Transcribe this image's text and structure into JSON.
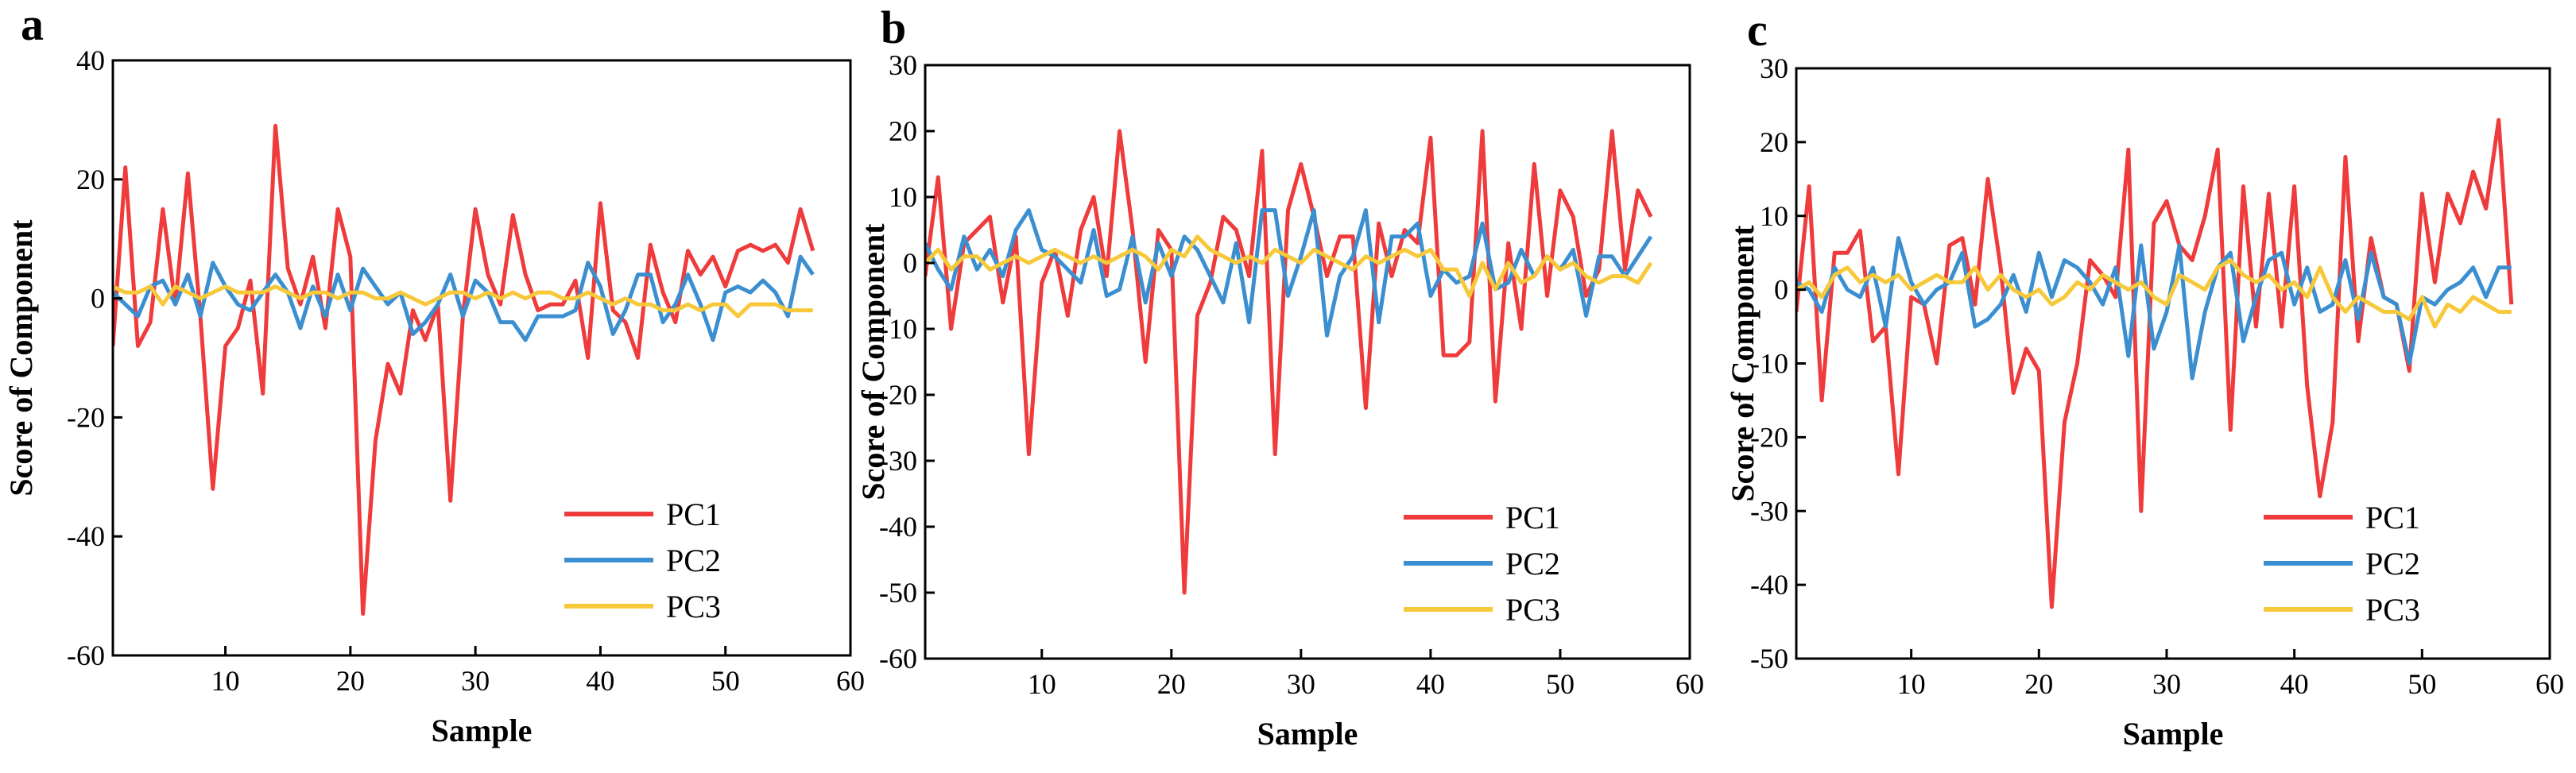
{
  "figure": {
    "series_colors": {
      "PC1": "#ef3b3b",
      "PC2": "#3b8fd1",
      "PC3": "#f7c83a"
    }
  },
  "chart_data": [
    {
      "type": "line",
      "panel_label": "a",
      "xlabel": "Sample",
      "ylabel": "Score of Component",
      "xlim": [
        1,
        60
      ],
      "ylim": [
        -60,
        40
      ],
      "xticks": [
        10,
        20,
        30,
        40,
        50,
        60
      ],
      "yticks": [
        -60,
        -40,
        -20,
        0,
        20,
        40
      ],
      "legend": [
        "PC1",
        "PC2",
        "PC3"
      ],
      "legend_position": "bottom-right",
      "x": [
        1,
        2,
        3,
        4,
        5,
        6,
        7,
        8,
        9,
        10,
        11,
        12,
        13,
        14,
        15,
        16,
        17,
        18,
        19,
        20,
        21,
        22,
        23,
        24,
        25,
        26,
        27,
        28,
        29,
        30,
        31,
        32,
        33,
        34,
        35,
        36,
        37,
        38,
        39,
        40,
        41,
        42,
        43,
        44,
        45,
        46,
        47,
        48,
        49,
        50,
        51,
        52,
        53,
        54,
        55,
        56,
        57
      ],
      "series": [
        {
          "name": "PC1",
          "values": [
            -8,
            22,
            -8,
            -4,
            15,
            -1,
            21,
            -3,
            -32,
            -8,
            -5,
            3,
            -16,
            29,
            5,
            -1,
            7,
            -5,
            15,
            7,
            -53,
            -24,
            -11,
            -16,
            -2,
            -7,
            -1,
            -34,
            -3,
            15,
            4,
            -1,
            14,
            4,
            -2,
            -1,
            -1,
            3,
            -10,
            16,
            -2,
            -4,
            -10,
            9,
            1,
            -4,
            8,
            4,
            7,
            2,
            8,
            9,
            8,
            9,
            6,
            15,
            8
          ]
        },
        {
          "name": "PC2",
          "values": [
            1,
            -1,
            -3,
            2,
            3,
            -1,
            4,
            -3,
            6,
            2,
            -1,
            -2,
            1,
            4,
            1,
            -5,
            2,
            -3,
            4,
            -2,
            5,
            2,
            -1,
            1,
            -6,
            -4,
            -1,
            4,
            -3,
            3,
            1,
            -4,
            -4,
            -7,
            -3,
            -3,
            -3,
            -2,
            6,
            2,
            -6,
            -2,
            4,
            4,
            -4,
            -1,
            4,
            -1,
            -7,
            1,
            2,
            1,
            3,
            1,
            -3,
            7,
            4
          ]
        },
        {
          "name": "PC3",
          "values": [
            2,
            1,
            1,
            2,
            -1,
            2,
            1,
            0,
            1,
            2,
            1,
            1,
            1,
            2,
            1,
            0,
            1,
            1,
            0,
            1,
            1,
            0,
            0,
            1,
            0,
            -1,
            0,
            1,
            1,
            0,
            1,
            0,
            1,
            0,
            1,
            1,
            0,
            0,
            1,
            0,
            -1,
            0,
            -1,
            -1,
            -2,
            -2,
            -1,
            -2,
            -1,
            -1,
            -3,
            -1,
            -1,
            -1,
            -2,
            -2,
            -2
          ]
        }
      ]
    },
    {
      "type": "line",
      "panel_label": "b",
      "xlabel": "Sample",
      "ylabel": "Score of Component",
      "xlim": [
        1,
        60
      ],
      "ylim": [
        -60,
        30
      ],
      "xticks": [
        10,
        20,
        30,
        40,
        50,
        60
      ],
      "yticks": [
        -60,
        -50,
        -40,
        -30,
        -20,
        -10,
        0,
        10,
        20,
        30
      ],
      "legend": [
        "PC1",
        "PC2",
        "PC3"
      ],
      "legend_position": "bottom-right",
      "x": [
        1,
        2,
        3,
        4,
        5,
        6,
        7,
        8,
        9,
        10,
        11,
        12,
        13,
        14,
        15,
        16,
        17,
        18,
        19,
        20,
        21,
        22,
        23,
        24,
        25,
        26,
        27,
        28,
        29,
        30,
        31,
        32,
        33,
        34,
        35,
        36,
        37,
        38,
        39,
        40,
        41,
        42,
        43,
        44,
        45,
        46,
        47,
        48,
        49,
        50,
        51,
        52,
        53,
        54,
        55,
        56,
        57
      ],
      "series": [
        {
          "name": "PC1",
          "values": [
            -2,
            13,
            -10,
            3,
            5,
            7,
            -6,
            4,
            -29,
            -3,
            2,
            -8,
            5,
            10,
            -2,
            20,
            5,
            -15,
            5,
            2,
            -50,
            -8,
            -3,
            7,
            5,
            -2,
            17,
            -29,
            8,
            15,
            7,
            -2,
            4,
            4,
            -22,
            6,
            -2,
            5,
            3,
            19,
            -14,
            -14,
            -12,
            20,
            -21,
            3,
            -10,
            15,
            -5,
            11,
            7,
            -5,
            -1,
            20,
            -1,
            11,
            7
          ]
        },
        {
          "name": "PC2",
          "values": [
            3,
            -1,
            -4,
            4,
            -1,
            2,
            -2,
            5,
            8,
            2,
            1,
            -1,
            -3,
            5,
            -5,
            -4,
            4,
            -6,
            3,
            -2,
            4,
            2,
            -2,
            -6,
            3,
            -9,
            8,
            8,
            -5,
            1,
            8,
            -11,
            -2,
            1,
            8,
            -9,
            4,
            4,
            6,
            -5,
            -1,
            -3,
            -2,
            6,
            -4,
            -3,
            2,
            -2,
            1,
            -1,
            2,
            -8,
            1,
            1,
            -2,
            1,
            4
          ]
        },
        {
          "name": "PC3",
          "values": [
            0,
            2,
            -1,
            1,
            1,
            -1,
            0,
            1,
            0,
            1,
            2,
            1,
            0,
            1,
            0,
            1,
            2,
            1,
            -1,
            2,
            1,
            4,
            2,
            1,
            0,
            1,
            0,
            2,
            1,
            0,
            2,
            1,
            0,
            -1,
            1,
            0,
            1,
            2,
            1,
            2,
            -1,
            -1,
            -5,
            0,
            -4,
            0,
            -3,
            -2,
            1,
            -1,
            0,
            -2,
            -3,
            -2,
            -2,
            -3,
            0
          ]
        }
      ]
    },
    {
      "type": "line",
      "panel_label": "c",
      "xlabel": "Sample",
      "ylabel": "Score of Component",
      "xlim": [
        1,
        60
      ],
      "ylim": [
        -50,
        30
      ],
      "xticks": [
        10,
        20,
        30,
        40,
        50,
        60
      ],
      "yticks": [
        -50,
        -40,
        -30,
        -20,
        -10,
        0,
        10,
        20,
        30
      ],
      "legend": [
        "PC1",
        "PC2",
        "PC3"
      ],
      "legend_position": "bottom-right",
      "x": [
        1,
        2,
        3,
        4,
        5,
        6,
        7,
        8,
        9,
        10,
        11,
        12,
        13,
        14,
        15,
        16,
        17,
        18,
        19,
        20,
        21,
        22,
        23,
        24,
        25,
        26,
        27,
        28,
        29,
        30,
        31,
        32,
        33,
        34,
        35,
        36,
        37,
        38,
        39,
        40,
        41,
        42,
        43,
        44,
        45,
        46,
        47,
        48,
        49,
        50,
        51,
        52,
        53,
        54,
        55,
        56,
        57
      ],
      "series": [
        {
          "name": "PC1",
          "values": [
            -3,
            14,
            -15,
            5,
            5,
            8,
            -7,
            -5,
            -25,
            -1,
            -2,
            -10,
            6,
            7,
            -2,
            15,
            3,
            -14,
            -8,
            -11,
            -43,
            -18,
            -10,
            4,
            2,
            -1,
            19,
            -30,
            9,
            12,
            6,
            4,
            10,
            19,
            -19,
            14,
            -5,
            13,
            -5,
            14,
            -13,
            -28,
            -18,
            18,
            -7,
            7,
            -1,
            -2,
            -11,
            13,
            1,
            13,
            9,
            16,
            11,
            23,
            -2
          ]
        },
        {
          "name": "PC2",
          "values": [
            1,
            0,
            -3,
            3,
            0,
            -1,
            3,
            -5,
            7,
            1,
            -2,
            0,
            1,
            5,
            -5,
            -4,
            -2,
            2,
            -3,
            5,
            -1,
            4,
            3,
            1,
            -2,
            3,
            -9,
            6,
            -8,
            -3,
            6,
            -12,
            -3,
            3,
            5,
            -7,
            -1,
            4,
            5,
            -2,
            3,
            -3,
            -2,
            4,
            -4,
            5,
            -1,
            -2,
            -10,
            -1,
            -2,
            0,
            1,
            3,
            -1,
            3,
            3
          ]
        },
        {
          "name": "PC3",
          "values": [
            0,
            1,
            -1,
            2,
            3,
            1,
            2,
            1,
            2,
            0,
            1,
            2,
            1,
            1,
            3,
            0,
            2,
            0,
            -1,
            0,
            -2,
            -1,
            1,
            0,
            2,
            1,
            0,
            1,
            -1,
            -2,
            2,
            1,
            0,
            3,
            4,
            2,
            1,
            2,
            0,
            1,
            -1,
            3,
            -1,
            -3,
            -1,
            -2,
            -3,
            -3,
            -4,
            -1,
            -5,
            -2,
            -3,
            -1,
            -2,
            -3,
            -3
          ]
        }
      ]
    }
  ]
}
